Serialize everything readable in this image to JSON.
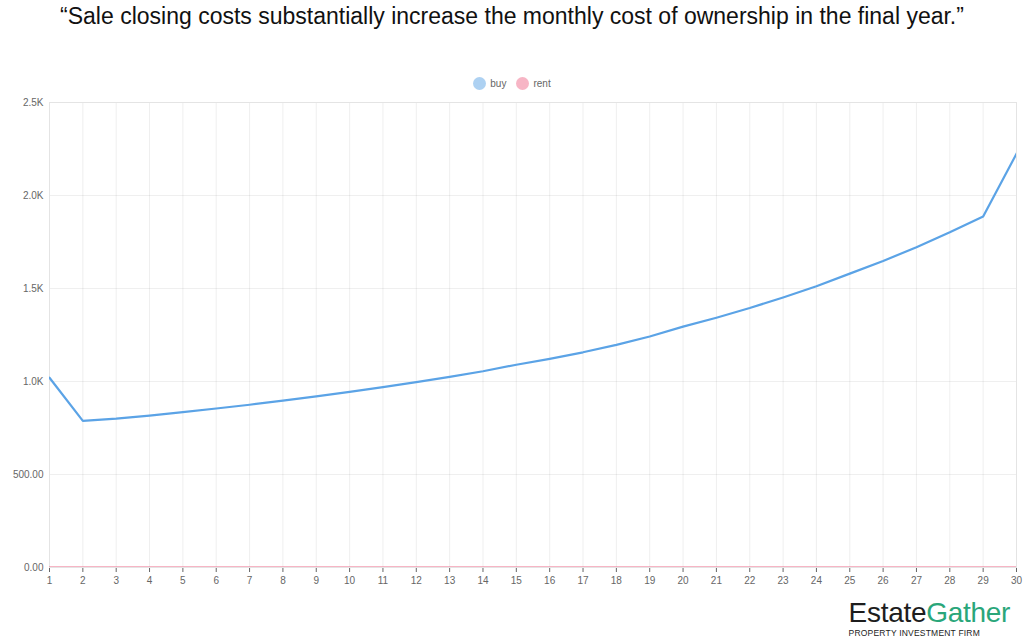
{
  "chart_data": {
    "type": "line",
    "title": "“Sale closing costs substantially increase the monthly cost of ownership in the final year.”",
    "x": [
      1,
      2,
      3,
      4,
      5,
      6,
      7,
      8,
      9,
      10,
      11,
      12,
      13,
      14,
      15,
      16,
      17,
      18,
      19,
      20,
      21,
      22,
      23,
      24,
      25,
      26,
      27,
      28,
      29,
      30
    ],
    "series": [
      {
        "name": "buy",
        "color": "#5ba3e6",
        "values": [
          1020,
          788,
          800,
          817,
          835,
          855,
          875,
          897,
          920,
          944,
          970,
          997,
          1025,
          1055,
          1090,
          1122,
          1157,
          1197,
          1242,
          1295,
          1343,
          1395,
          1452,
          1512,
          1580,
          1648,
          1722,
          1802,
          1887,
          2225
        ]
      },
      {
        "name": "rent",
        "color": "#f06c8c",
        "values": [
          0,
          0,
          0,
          0,
          0,
          0,
          0,
          0,
          0,
          0,
          0,
          0,
          0,
          0,
          0,
          0,
          0,
          0,
          0,
          0,
          0,
          0,
          0,
          0,
          0,
          0,
          0,
          0,
          0,
          0
        ]
      }
    ],
    "xlim": [
      1,
      30
    ],
    "xticks": [
      1,
      2,
      3,
      4,
      5,
      6,
      7,
      8,
      9,
      10,
      11,
      12,
      13,
      14,
      15,
      16,
      17,
      18,
      19,
      20,
      21,
      22,
      23,
      24,
      25,
      26,
      27,
      28,
      29,
      30
    ],
    "ylim": [
      0,
      2500
    ],
    "yticks": [
      {
        "value": 0,
        "label": "0.00"
      },
      {
        "value": 500,
        "label": "500.00"
      },
      {
        "value": 1000,
        "label": "1.0K"
      },
      {
        "value": 1500,
        "label": "1.5K"
      },
      {
        "value": 2000,
        "label": "2.0K"
      },
      {
        "value": 2500,
        "label": "2.5K"
      }
    ],
    "grid": true,
    "legend": "top",
    "logo": {
      "text": [
        "Estate",
        "Gather"
      ],
      "tagline": "PROPERTY INVESTMENT FIRM"
    }
  }
}
